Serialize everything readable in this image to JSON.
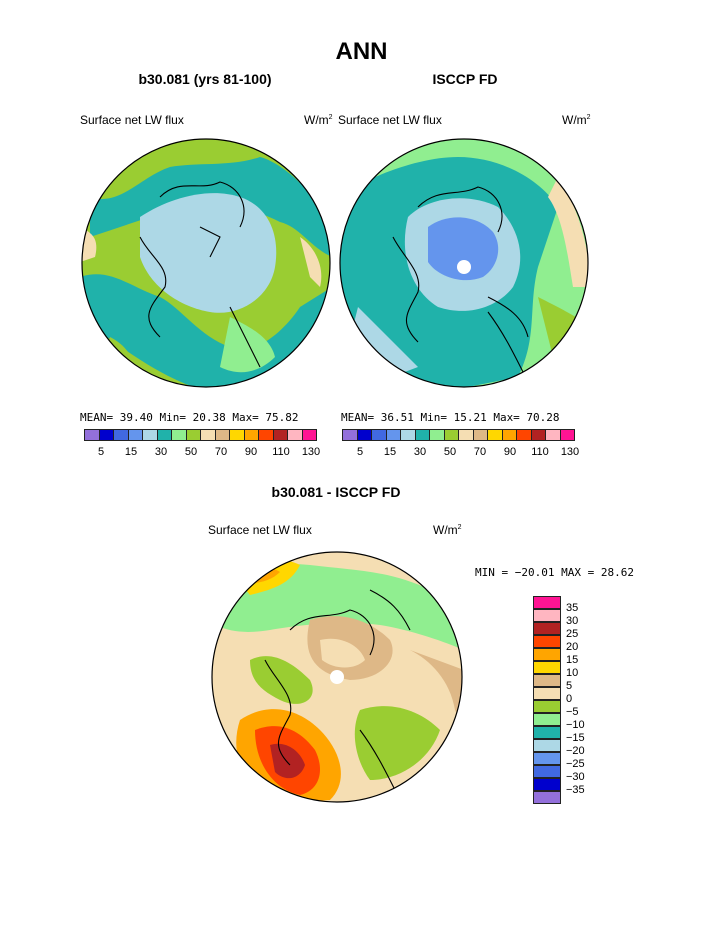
{
  "title": "ANN",
  "left_panel": {
    "subtitle": "b30.081 (yrs 81-100)",
    "variable": "Surface net LW flux",
    "units_base": "W/m",
    "units_exp": "2",
    "stats": "MEAN=  39.40  Min=  20.38  Max=  75.82"
  },
  "right_panel": {
    "subtitle": "ISCCP FD",
    "variable": "Surface net LW flux",
    "units_base": "W/m",
    "units_exp": "2",
    "stats": "MEAN=  36.51  Min=  15.21  Max=  70.28"
  },
  "abs_colorbar": {
    "colors": [
      "#9370db",
      "#0000cd",
      "#4169e1",
      "#6495ed",
      "#add8e6",
      "#20b2aa",
      "#90ee90",
      "#9acd32",
      "#f5deb3",
      "#deb887",
      "#ffd700",
      "#ffa500",
      "#ff4500",
      "#b22222",
      "#ffb6c1",
      "#ff1493"
    ],
    "ticks": [
      "5",
      "15",
      "30",
      "50",
      "70",
      "90",
      "110",
      "130"
    ]
  },
  "diff_panel": {
    "subtitle": "b30.081 - ISCCP FD",
    "variable": "Surface net LW flux",
    "units_base": "W/m",
    "units_exp": "2",
    "stats": "MIN = −20.01 MAX =  28.62"
  },
  "diff_colorbar": {
    "colors": [
      "#ff1493",
      "#ffb6c1",
      "#b22222",
      "#ff4500",
      "#ffa500",
      "#ffd700",
      "#deb887",
      "#f5deb3",
      "#9acd32",
      "#90ee90",
      "#20b2aa",
      "#add8e6",
      "#6495ed",
      "#4169e1",
      "#0000cd",
      "#9370db"
    ],
    "ticks": [
      "35",
      "30",
      "25",
      "20",
      "15",
      "10",
      "5",
      "0",
      "−5",
      "−10",
      "−15",
      "−20",
      "−25",
      "−30",
      "−35"
    ]
  }
}
